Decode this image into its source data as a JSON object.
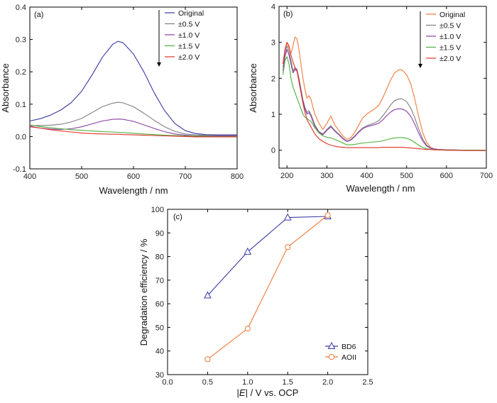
{
  "chart_data": [
    {
      "type": "line",
      "panel_label": "(a)",
      "xlabel": "Wavelength / nm",
      "ylabel": "Absorbance",
      "xlim": [
        400,
        800
      ],
      "ylim": [
        -0.1,
        0.4
      ],
      "xticks": [
        "400",
        "500",
        "600",
        "700",
        "800"
      ],
      "yticks": [
        "-0.1",
        "0.0",
        "0.1",
        "0.2",
        "0.3",
        "0.4"
      ],
      "legend_position": "top-right",
      "legend_arrow": true,
      "series": [
        {
          "name": "Original",
          "color": "#3a3aa8",
          "x": [
            400,
            420,
            440,
            460,
            480,
            500,
            520,
            540,
            560,
            570,
            580,
            600,
            620,
            640,
            660,
            680,
            700,
            720,
            740,
            760,
            780,
            800
          ],
          "y": [
            0.048,
            0.055,
            0.066,
            0.082,
            0.105,
            0.14,
            0.19,
            0.245,
            0.285,
            0.294,
            0.29,
            0.255,
            0.2,
            0.135,
            0.08,
            0.04,
            0.018,
            0.009,
            0.006,
            0.005,
            0.005,
            0.005
          ]
        },
        {
          "name": "±0.5 V",
          "color": "#808080",
          "x": [
            400,
            420,
            440,
            460,
            480,
            500,
            520,
            540,
            560,
            570,
            580,
            600,
            620,
            640,
            660,
            680,
            700,
            720,
            740,
            760,
            780,
            800
          ],
          "y": [
            0.034,
            0.034,
            0.035,
            0.038,
            0.045,
            0.056,
            0.074,
            0.092,
            0.103,
            0.106,
            0.104,
            0.092,
            0.072,
            0.05,
            0.03,
            0.016,
            0.008,
            0.005,
            0.004,
            0.003,
            0.003,
            0.003
          ]
        },
        {
          "name": "±1.0 V",
          "color": "#8b3fa6",
          "x": [
            400,
            420,
            440,
            460,
            480,
            500,
            520,
            540,
            560,
            570,
            580,
            600,
            620,
            640,
            660,
            680,
            700,
            720,
            740,
            760,
            780,
            800
          ],
          "y": [
            0.03,
            0.026,
            0.023,
            0.022,
            0.024,
            0.03,
            0.039,
            0.048,
            0.053,
            0.054,
            0.053,
            0.047,
            0.036,
            0.025,
            0.015,
            0.008,
            0.004,
            0.002,
            0.002,
            0.002,
            0.002,
            0.002
          ]
        },
        {
          "name": "±1.5 V",
          "color": "#4caf3a",
          "x": [
            400,
            420,
            440,
            460,
            480,
            500,
            520,
            540,
            560,
            570,
            580,
            600,
            620,
            640,
            660,
            680,
            700,
            720,
            740,
            760,
            780,
            800
          ],
          "y": [
            0.036,
            0.031,
            0.027,
            0.024,
            0.021,
            0.019,
            0.017,
            0.015,
            0.014,
            0.013,
            0.012,
            0.01,
            0.008,
            0.006,
            0.004,
            0.003,
            0.002,
            0.001,
            0.001,
            0.0,
            0.0,
            0.0
          ]
        },
        {
          "name": "±2.0 V",
          "color": "#e0322a",
          "x": [
            400,
            420,
            440,
            460,
            480,
            500,
            520,
            540,
            560,
            570,
            580,
            600,
            620,
            640,
            660,
            680,
            700,
            720,
            740,
            760,
            780,
            800
          ],
          "y": [
            0.032,
            0.026,
            0.021,
            0.017,
            0.014,
            0.011,
            0.009,
            0.008,
            0.007,
            0.007,
            0.006,
            0.005,
            0.004,
            0.003,
            0.002,
            0.001,
            0.0,
            -0.001,
            -0.001,
            -0.001,
            -0.001,
            -0.001
          ]
        }
      ]
    },
    {
      "type": "line",
      "panel_label": "(b)",
      "xlabel": "Wavelength / nm",
      "ylabel": "Absorbance",
      "xlim": [
        180,
        700
      ],
      "ylim": [
        -0.5,
        4
      ],
      "xticks": [
        "200",
        "300",
        "400",
        "500",
        "600",
        "700"
      ],
      "yticks": [
        "0",
        "1",
        "2",
        "3",
        "4"
      ],
      "legend_position": "top-right",
      "legend_arrow": true,
      "series": [
        {
          "name": "Original",
          "color": "#f07a3a",
          "x": [
            190,
            195,
            200,
            205,
            210,
            215,
            220,
            225,
            230,
            235,
            240,
            245,
            250,
            255,
            260,
            265,
            270,
            280,
            290,
            300,
            310,
            320,
            330,
            340,
            350,
            360,
            370,
            380,
            390,
            400,
            410,
            420,
            430,
            440,
            450,
            460,
            470,
            480,
            485,
            490,
            500,
            510,
            520,
            530,
            540,
            550,
            560,
            570,
            580,
            600,
            650,
            700
          ],
          "y": [
            2.4,
            2.8,
            3.0,
            2.85,
            2.7,
            2.9,
            3.15,
            3.1,
            2.8,
            2.4,
            2.0,
            1.7,
            1.45,
            1.52,
            1.42,
            1.2,
            1.0,
            0.75,
            0.58,
            0.75,
            0.95,
            0.7,
            0.55,
            0.4,
            0.3,
            0.35,
            0.5,
            0.7,
            0.9,
            1.0,
            1.08,
            1.15,
            1.25,
            1.45,
            1.7,
            1.95,
            2.15,
            2.23,
            2.24,
            2.22,
            2.1,
            1.85,
            1.45,
            0.95,
            0.5,
            0.22,
            0.08,
            0.03,
            0.02,
            0.01,
            0.0,
            0.0
          ]
        },
        {
          "name": "±0.5 V",
          "color": "#808080",
          "x": [
            190,
            195,
            200,
            205,
            210,
            215,
            220,
            225,
            230,
            235,
            240,
            245,
            250,
            255,
            260,
            265,
            270,
            280,
            290,
            300,
            310,
            320,
            330,
            340,
            350,
            360,
            370,
            380,
            390,
            400,
            410,
            420,
            430,
            440,
            450,
            460,
            470,
            480,
            485,
            490,
            500,
            510,
            520,
            530,
            540,
            550,
            560,
            570,
            580,
            600,
            650,
            700
          ],
          "y": [
            2.3,
            2.7,
            2.9,
            2.75,
            2.5,
            2.2,
            2.3,
            2.25,
            2.0,
            1.7,
            1.4,
            1.2,
            1.05,
            1.1,
            1.0,
            0.85,
            0.7,
            0.52,
            0.45,
            0.58,
            0.68,
            0.55,
            0.45,
            0.34,
            0.25,
            0.3,
            0.4,
            0.52,
            0.62,
            0.68,
            0.72,
            0.76,
            0.82,
            0.95,
            1.1,
            1.26,
            1.38,
            1.42,
            1.43,
            1.42,
            1.35,
            1.18,
            0.92,
            0.6,
            0.32,
            0.14,
            0.06,
            0.03,
            0.02,
            0.01,
            0.0,
            0.0
          ]
        },
        {
          "name": "±1.0 V",
          "color": "#8b3fa6",
          "x": [
            190,
            195,
            200,
            205,
            210,
            215,
            220,
            225,
            230,
            235,
            240,
            245,
            250,
            255,
            260,
            265,
            270,
            280,
            290,
            300,
            310,
            320,
            330,
            340,
            350,
            360,
            370,
            380,
            390,
            400,
            410,
            420,
            430,
            440,
            450,
            460,
            470,
            480,
            485,
            490,
            500,
            510,
            520,
            530,
            540,
            550,
            560,
            570,
            580,
            600,
            650,
            700
          ],
          "y": [
            2.2,
            2.6,
            2.8,
            2.65,
            2.4,
            2.15,
            2.25,
            2.2,
            1.95,
            1.65,
            1.35,
            1.15,
            1.0,
            1.05,
            0.95,
            0.8,
            0.66,
            0.5,
            0.43,
            0.55,
            0.65,
            0.53,
            0.43,
            0.32,
            0.24,
            0.28,
            0.38,
            0.5,
            0.6,
            0.65,
            0.68,
            0.71,
            0.75,
            0.84,
            0.96,
            1.06,
            1.13,
            1.15,
            1.15,
            1.14,
            1.08,
            0.95,
            0.74,
            0.48,
            0.26,
            0.12,
            0.05,
            0.03,
            0.02,
            0.01,
            0.0,
            0.0
          ]
        },
        {
          "name": "±1.5 V",
          "color": "#4caf3a",
          "x": [
            190,
            195,
            200,
            205,
            210,
            215,
            220,
            225,
            230,
            235,
            240,
            245,
            250,
            255,
            260,
            265,
            270,
            280,
            290,
            300,
            310,
            320,
            330,
            340,
            350,
            360,
            370,
            380,
            390,
            400,
            410,
            420,
            430,
            440,
            450,
            460,
            470,
            480,
            485,
            490,
            500,
            510,
            520,
            530,
            540,
            550,
            560,
            570,
            580,
            600,
            650,
            700
          ],
          "y": [
            2.1,
            2.5,
            2.6,
            2.4,
            2.0,
            1.75,
            1.6,
            1.45,
            1.3,
            1.15,
            1.0,
            0.92,
            0.88,
            0.84,
            0.8,
            0.72,
            0.62,
            0.48,
            0.4,
            0.36,
            0.34,
            0.3,
            0.25,
            0.2,
            0.15,
            0.15,
            0.16,
            0.18,
            0.2,
            0.21,
            0.22,
            0.23,
            0.24,
            0.26,
            0.29,
            0.32,
            0.34,
            0.35,
            0.35,
            0.35,
            0.33,
            0.29,
            0.22,
            0.14,
            0.08,
            0.04,
            0.02,
            0.01,
            0.01,
            0.0,
            0.0,
            0.0
          ]
        },
        {
          "name": "±2.0 V",
          "color": "#e0322a",
          "x": [
            190,
            195,
            200,
            205,
            210,
            215,
            220,
            225,
            230,
            235,
            240,
            245,
            250,
            255,
            260,
            265,
            270,
            280,
            290,
            300,
            310,
            320,
            330,
            340,
            350,
            360,
            370,
            380,
            390,
            400,
            410,
            420,
            430,
            440,
            450,
            460,
            470,
            480,
            485,
            490,
            500,
            510,
            520,
            530,
            540,
            550,
            560,
            570,
            580,
            600,
            650,
            700
          ],
          "y": [
            2.4,
            2.8,
            3.0,
            2.9,
            2.65,
            2.45,
            2.3,
            2.2,
            1.9,
            1.6,
            1.3,
            1.05,
            0.85,
            0.75,
            0.65,
            0.55,
            0.45,
            0.32,
            0.24,
            0.18,
            0.14,
            0.11,
            0.09,
            0.08,
            0.07,
            0.07,
            0.07,
            0.07,
            0.07,
            0.07,
            0.07,
            0.07,
            0.07,
            0.08,
            0.08,
            0.08,
            0.08,
            0.08,
            0.08,
            0.08,
            0.07,
            0.06,
            0.05,
            0.04,
            0.03,
            0.02,
            0.02,
            0.01,
            0.01,
            0.0,
            -0.01,
            -0.01
          ]
        }
      ]
    },
    {
      "type": "line",
      "panel_label": "(c)",
      "xlabel_prefix": "|",
      "xlabel_var": "E",
      "xlabel_suffix": "| / V vs. OCP",
      "ylabel": "Degradation efficiency / %",
      "xlim": [
        0,
        2.5
      ],
      "ylim": [
        30,
        100
      ],
      "xticks": [
        "0.0",
        "0.5",
        "1.0",
        "1.5",
        "2.0",
        "2.5"
      ],
      "yticks": [
        "30",
        "40",
        "50",
        "60",
        "70",
        "80",
        "90",
        "100"
      ],
      "legend_position": "bottom-right",
      "series": [
        {
          "name": "BD6",
          "color": "#3a3aa8",
          "marker": "triangle",
          "x": [
            0.5,
            1.0,
            1.5,
            2.0
          ],
          "y": [
            63.5,
            82,
            96.5,
            97
          ]
        },
        {
          "name": "AOII",
          "color": "#f07a3a",
          "marker": "circle",
          "x": [
            0.5,
            1.0,
            1.5,
            2.0
          ],
          "y": [
            36.5,
            49.5,
            84,
            97.5
          ]
        }
      ]
    }
  ]
}
